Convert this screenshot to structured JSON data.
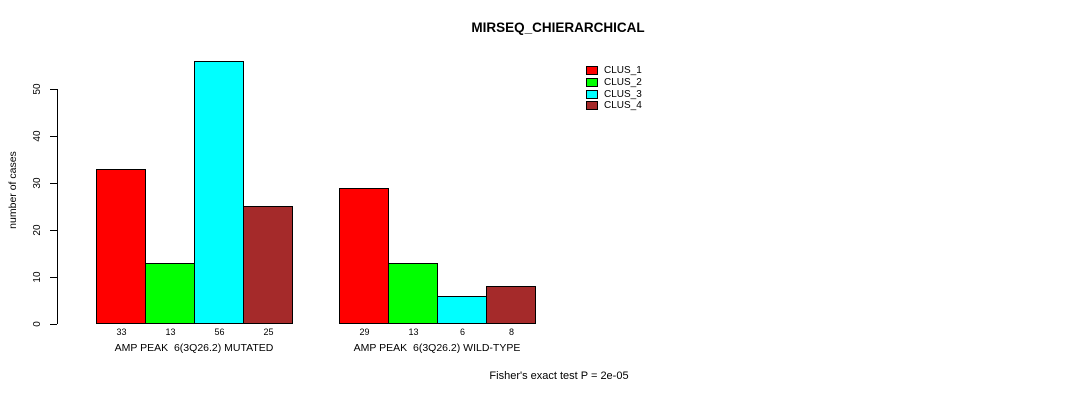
{
  "page": {
    "title": "MIRSEQ_CHIERARCHICAL"
  },
  "chart_data": {
    "type": "bar",
    "title": "MIRSEQ_CHIERARCHICAL",
    "ylabel": "number of cases",
    "xlabel": "",
    "ylim": [
      0,
      58
    ],
    "yticks": [
      0,
      10,
      20,
      30,
      40,
      50
    ],
    "grid": false,
    "categories": [
      "AMP PEAK  6(3Q26.2) MUTATED",
      "AMP PEAK  6(3Q26.2) WILD-TYPE"
    ],
    "series": [
      {
        "name": "CLUS_1",
        "color": "#ff0000",
        "values": [
          33,
          29
        ]
      },
      {
        "name": "CLUS_2",
        "color": "#00ff00",
        "values": [
          13,
          13
        ]
      },
      {
        "name": "CLUS_3",
        "color": "#00ffff",
        "values": [
          56,
          6
        ]
      },
      {
        "name": "CLUS_4",
        "color": "#a52a2a",
        "values": [
          25,
          8
        ]
      }
    ],
    "value_labels": [
      [
        "33",
        "13",
        "56",
        "25"
      ],
      [
        "29",
        "13",
        "6",
        "8"
      ]
    ],
    "bar_border_color": "#000000",
    "axis_color": "#000000",
    "legend_position": "top-right",
    "annotation": "Fisher's exact test P = 2e-05"
  }
}
